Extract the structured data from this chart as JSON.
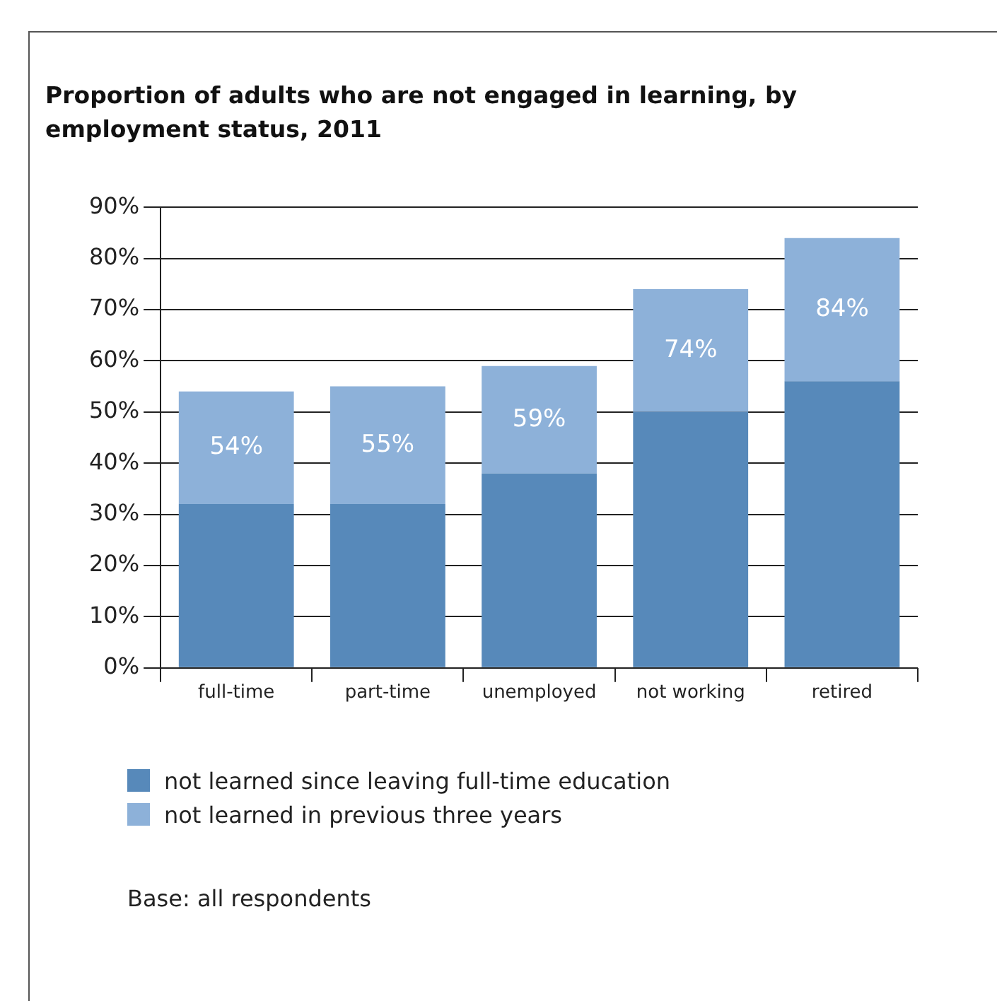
{
  "chart_data": {
    "type": "bar",
    "title": "Proportion of adults who are not engaged in learning, by employment status, 2011",
    "categories": [
      "full-time",
      "part-time",
      "unemployed",
      "not working",
      "retired"
    ],
    "series": [
      {
        "name": "not learned since leaving full-time education",
        "color": "#5789ba",
        "values": [
          32,
          32,
          38,
          50,
          56
        ]
      },
      {
        "name": "not learned in previous three years",
        "color": "#8db1d9",
        "values": [
          22,
          23,
          21,
          24,
          28
        ]
      }
    ],
    "stacked": true,
    "totals": [
      "54%",
      "55%",
      "59%",
      "74%",
      "84%"
    ],
    "ylim": [
      0,
      90
    ],
    "yticks": [
      {
        "value": 0,
        "label": "0%"
      },
      {
        "value": 10,
        "label": "10%"
      },
      {
        "value": 20,
        "label": "20%"
      },
      {
        "value": 30,
        "label": "30%"
      },
      {
        "value": 40,
        "label": "40%"
      },
      {
        "value": 50,
        "label": "50%"
      },
      {
        "value": 60,
        "label": "60%"
      },
      {
        "value": 70,
        "label": "70%"
      },
      {
        "value": 80,
        "label": "80%"
      },
      {
        "value": 90,
        "label": "90%"
      }
    ],
    "grid": "y",
    "legend": "bottom",
    "annotations": [
      "Base: all respondents"
    ]
  }
}
